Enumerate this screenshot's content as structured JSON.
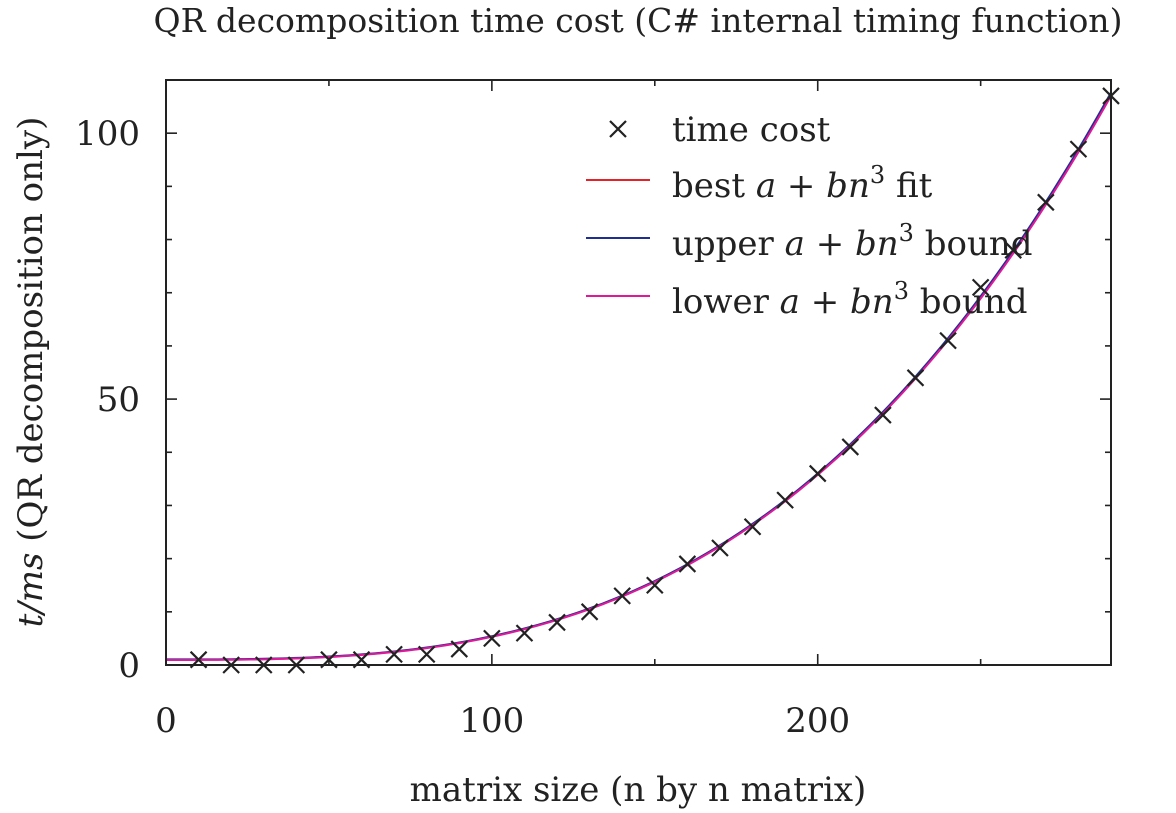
{
  "chart_data": {
    "type": "scatter",
    "title": "QR decomposition time cost (C# internal timing function)",
    "xlabel": "matrix size (n by n matrix)",
    "ylabel": {
      "italic": "t/ms",
      "rest": " (QR decomposition only)"
    },
    "xlim": [
      0,
      290
    ],
    "ylim": [
      0,
      110
    ],
    "x_ticks": [
      0,
      100,
      200
    ],
    "y_ticks": [
      0,
      50,
      100
    ],
    "grid": false,
    "legend_position": "top-right",
    "series": [
      {
        "name": "time cost",
        "kind": "points",
        "marker": "x",
        "color": "#222222",
        "x": [
          10,
          20,
          30,
          40,
          50,
          60,
          70,
          80,
          90,
          100,
          110,
          120,
          130,
          140,
          150,
          160,
          170,
          180,
          190,
          200,
          210,
          220,
          230,
          240,
          250,
          260,
          270,
          280,
          290
        ],
        "y": [
          1,
          0,
          0,
          0,
          1,
          1,
          2,
          2,
          3,
          5,
          6,
          8,
          10,
          13,
          15,
          19,
          22,
          26,
          31,
          36,
          41,
          47,
          54,
          61,
          71,
          78,
          87,
          97,
          107
        ]
      },
      {
        "name": {
          "pre": "best ",
          "math": "a + bn",
          "sup": "3",
          "post": " fit"
        },
        "kind": "line",
        "color": "#e5212a",
        "model": {
          "a": 1.0,
          "b": 4.36e-06
        }
      },
      {
        "name": {
          "pre": "upper ",
          "math": "a + bn",
          "sup": "3",
          "post": " bound"
        },
        "kind": "line",
        "color": "#1f2f8f",
        "model": {
          "a": 1.05,
          "b": 4.37e-06
        }
      },
      {
        "name": {
          "pre": "lower ",
          "math": "a + bn",
          "sup": "3",
          "post": " bound"
        },
        "kind": "line",
        "color": "#e0199a",
        "model": {
          "a": 0.95,
          "b": 4.35e-06
        }
      }
    ]
  }
}
